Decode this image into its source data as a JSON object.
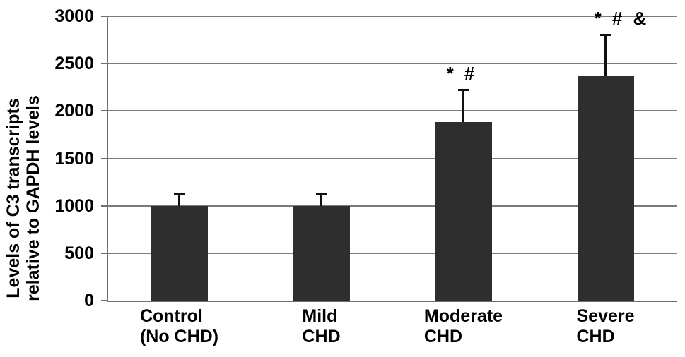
{
  "figure": {
    "background": "#ffffff"
  },
  "chart_data": {
    "type": "bar",
    "title": "",
    "ylabel_lines": [
      "Levels of C3 transcripts",
      "relative to GAPDH levels"
    ],
    "xlabel": "",
    "categories": [
      [
        "Control",
        "(No CHD)"
      ],
      [
        "Mild",
        "CHD"
      ],
      [
        "Moderate",
        "CHD"
      ],
      [
        "Severe",
        "CHD"
      ]
    ],
    "values": [
      1000,
      1000,
      1880,
      2370
    ],
    "error_up": [
      130,
      130,
      345,
      435
    ],
    "annotations": [
      "",
      "",
      "* #",
      "* # &"
    ],
    "y_ticks": [
      0,
      500,
      1000,
      1500,
      2000,
      2500,
      3000
    ],
    "ylim": [
      0,
      3000
    ],
    "grid": "horizontal",
    "legend": false,
    "bar_color": "#2e2e2e",
    "grid_color": "#7b7b7b",
    "axis_color": "#6e6e6e",
    "error_color": "#111111",
    "text_color": "#000000"
  }
}
